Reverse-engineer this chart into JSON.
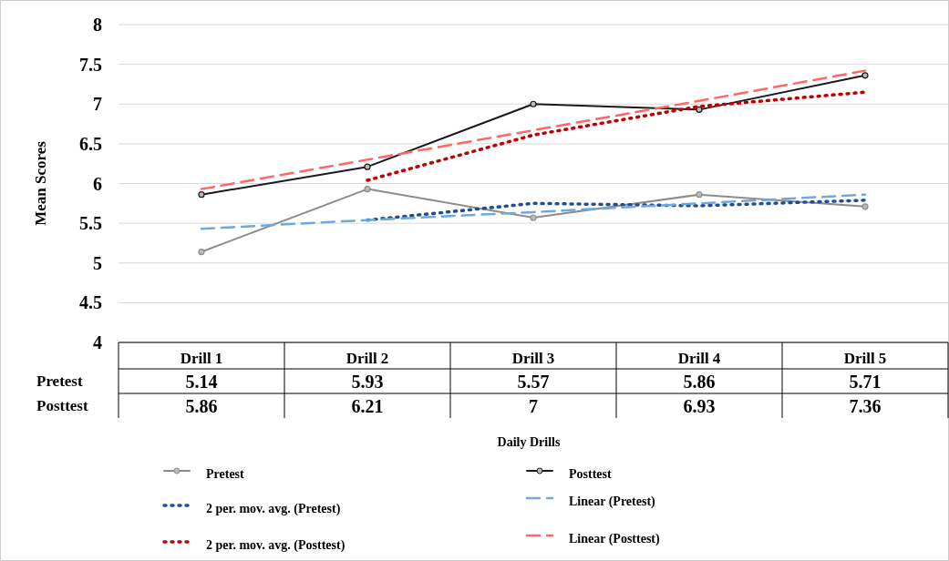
{
  "chart_data": {
    "type": "line",
    "annotations": [
      "Daily Drills"
    ],
    "ylabel": "Mean Scores",
    "categories": [
      "Drill 1",
      "Drill 2",
      "Drill 3",
      "Drill 4",
      "Drill 5"
    ],
    "ylim": [
      4,
      8
    ],
    "yticks": [
      4,
      4.5,
      5,
      5.5,
      6,
      6.5,
      7,
      7.5,
      8
    ],
    "grid": "y",
    "legend": "bottom",
    "series": [
      {
        "name": "Pretest",
        "color": "#8c8c8c",
        "marker": "circle",
        "line_style": "solid",
        "values": [
          5.14,
          5.93,
          5.57,
          5.86,
          5.71
        ],
        "value_labels": [
          "5.14",
          "5.93",
          "5.57",
          "5.86",
          "5.71"
        ]
      },
      {
        "name": "Posttest",
        "color": "#1a1a1a",
        "marker": "circle",
        "line_style": "solid",
        "values": [
          5.86,
          6.21,
          7,
          6.93,
          7.36
        ],
        "value_labels": [
          "5.86",
          "6.21",
          "7",
          "6.93",
          "7.36"
        ]
      },
      {
        "name": "2 per. mov. avg. (Pretest)",
        "color": "#1f4e99",
        "marker": "none",
        "line_style": "dotted",
        "values": [
          null,
          5.54,
          5.75,
          5.72,
          5.79
        ]
      },
      {
        "name": "Linear (Pretest)",
        "color": "#6fa8dc",
        "marker": "none",
        "line_style": "dashed",
        "values": [
          5.43,
          5.54,
          5.64,
          5.75,
          5.86
        ]
      },
      {
        "name": "2 per. mov. avg. (Posttest)",
        "color": "#c00000",
        "marker": "none",
        "line_style": "dotted",
        "values": [
          null,
          6.04,
          6.61,
          6.97,
          7.15
        ]
      },
      {
        "name": "Linear (Posttest)",
        "color": "#ff6666",
        "marker": "none",
        "line_style": "dashed",
        "values": [
          5.93,
          6.3,
          6.67,
          7.04,
          7.42
        ]
      }
    ]
  }
}
